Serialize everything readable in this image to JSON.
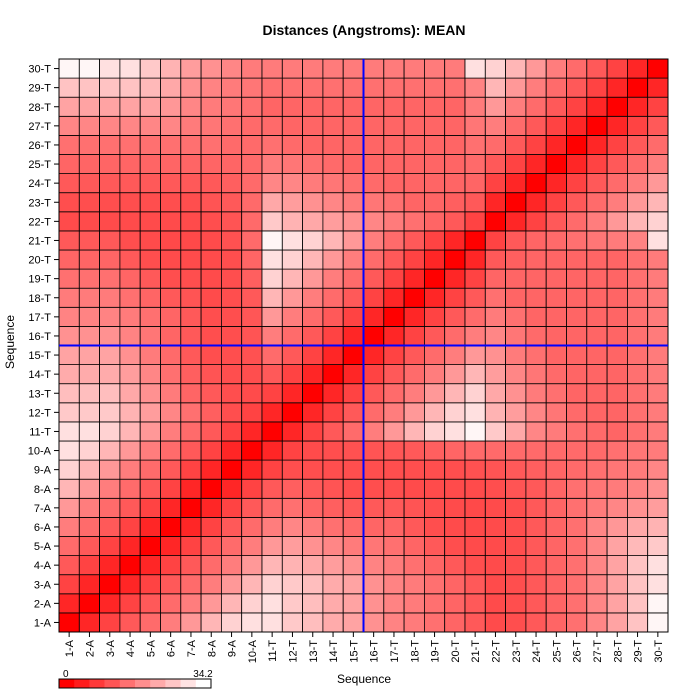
{
  "chart_data": {
    "type": "heatmap",
    "title": "Distances (Angstroms):  MEAN",
    "xlabel": "Sequence",
    "ylabel": "Sequence",
    "x_labels": [
      "1-A",
      "2-A",
      "3-A",
      "4-A",
      "5-A",
      "6-A",
      "7-A",
      "8-A",
      "9-A",
      "10-A",
      "11-T",
      "12-T",
      "13-T",
      "14-T",
      "15-T",
      "16-T",
      "17-T",
      "18-T",
      "19-T",
      "20-T",
      "21-T",
      "22-T",
      "23-T",
      "24-T",
      "25-T",
      "26-T",
      "27-T",
      "28-T",
      "29-T",
      "30-T"
    ],
    "y_labels": [
      "1-A",
      "2-A",
      "3-A",
      "4-A",
      "5-A",
      "6-A",
      "7-A",
      "8-A",
      "9-A",
      "10-A",
      "11-T",
      "12-T",
      "13-T",
      "14-T",
      "15-T",
      "16-T",
      "17-T",
      "18-T",
      "19-T",
      "20-T",
      "21-T",
      "22-T",
      "23-T",
      "24-T",
      "25-T",
      "26-T",
      "27-T",
      "28-T",
      "29-T",
      "30-T"
    ],
    "matrix": [
      [
        0.0,
        5.1,
        9.0,
        12.0,
        14.4,
        16.7,
        20.4,
        24.4,
        28.2,
        30.0,
        30.0,
        27.0,
        25.5,
        22.9,
        21.8,
        19.4,
        17.6,
        16.5,
        15.0,
        13.5,
        12.0,
        10.1,
        10.5,
        12.0,
        13.5,
        15.0,
        18.0,
        21.8,
        26.2,
        33.0
      ],
      [
        5.1,
        0.0,
        5.1,
        9.0,
        12.0,
        14.4,
        16.7,
        20.4,
        24.4,
        28.2,
        30.0,
        27.0,
        25.5,
        22.9,
        21.8,
        19.4,
        17.6,
        16.5,
        15.0,
        13.5,
        12.0,
        10.1,
        10.5,
        12.0,
        13.5,
        15.0,
        18.0,
        21.8,
        26.2,
        33.0
      ],
      [
        9.0,
        5.1,
        0.0,
        5.1,
        9.0,
        12.0,
        14.4,
        16.7,
        20.4,
        24.4,
        28.2,
        27.0,
        25.5,
        22.9,
        21.8,
        19.4,
        17.6,
        16.5,
        15.0,
        13.5,
        12.0,
        10.1,
        10.5,
        12.0,
        13.5,
        15.0,
        18.0,
        21.8,
        26.2,
        30.0
      ],
      [
        12.0,
        9.0,
        5.1,
        0.0,
        5.1,
        9.0,
        12.0,
        14.4,
        16.7,
        20.4,
        24.4,
        24.0,
        22.5,
        21.0,
        19.5,
        17.6,
        16.5,
        15.0,
        13.5,
        12.0,
        10.5,
        10.1,
        10.5,
        12.0,
        13.5,
        15.0,
        18.0,
        21.8,
        26.2,
        30.0
      ],
      [
        14.4,
        12.0,
        9.0,
        5.1,
        0.0,
        5.1,
        9.0,
        12.0,
        14.4,
        16.7,
        20.4,
        21.0,
        19.5,
        18.0,
        16.5,
        15.8,
        15.0,
        13.5,
        12.0,
        10.5,
        10.1,
        10.1,
        10.5,
        12.0,
        13.5,
        15.0,
        18.0,
        21.8,
        24.8,
        27.0
      ],
      [
        16.7,
        14.4,
        12.0,
        9.0,
        5.1,
        0.0,
        5.1,
        9.0,
        12.0,
        14.4,
        16.7,
        18.0,
        16.5,
        15.0,
        14.2,
        13.5,
        13.5,
        12.0,
        10.5,
        10.1,
        9.8,
        10.1,
        10.5,
        12.0,
        13.5,
        15.0,
        18.0,
        20.2,
        22.5,
        24.0
      ],
      [
        20.4,
        16.7,
        14.4,
        12.0,
        9.0,
        5.1,
        0.0,
        5.1,
        9.0,
        12.0,
        14.4,
        15.0,
        13.5,
        12.8,
        12.0,
        12.0,
        12.0,
        11.2,
        10.5,
        10.1,
        9.8,
        10.1,
        10.5,
        12.0,
        13.5,
        15.0,
        16.5,
        18.0,
        19.5,
        21.0
      ],
      [
        24.4,
        20.4,
        16.7,
        14.4,
        12.0,
        9.0,
        5.1,
        0.0,
        5.1,
        9.0,
        12.0,
        12.8,
        12.0,
        11.2,
        10.5,
        10.5,
        10.5,
        10.1,
        10.1,
        10.1,
        10.1,
        10.5,
        11.2,
        12.0,
        13.5,
        15.0,
        15.8,
        16.5,
        17.6,
        19.5
      ],
      [
        28.2,
        24.4,
        20.4,
        16.7,
        14.4,
        12.0,
        9.0,
        5.1,
        0.0,
        5.1,
        9.0,
        10.5,
        10.5,
        10.5,
        10.5,
        10.5,
        10.5,
        10.5,
        10.5,
        10.5,
        10.9,
        11.2,
        12.0,
        12.8,
        13.5,
        14.2,
        15.0,
        15.8,
        16.5,
        18.0
      ],
      [
        30.0,
        28.2,
        24.4,
        20.4,
        16.7,
        14.4,
        12.0,
        9.0,
        5.1,
        0.0,
        5.1,
        9.0,
        10.1,
        10.5,
        10.9,
        11.2,
        11.6,
        12.0,
        12.8,
        13.5,
        14.2,
        14.2,
        14.2,
        14.2,
        14.2,
        14.2,
        14.2,
        15.0,
        15.8,
        16.5
      ],
      [
        30.0,
        30.0,
        28.2,
        24.4,
        20.4,
        16.7,
        14.4,
        12.0,
        9.0,
        5.1,
        0.0,
        5.1,
        9.0,
        12.0,
        14.4,
        16.7,
        20.4,
        24.4,
        28.2,
        30.0,
        33.0,
        27.0,
        22.5,
        18.0,
        16.5,
        15.0,
        14.2,
        13.5,
        15.0,
        16.5
      ],
      [
        27.0,
        27.0,
        27.0,
        24.0,
        21.0,
        18.0,
        15.0,
        12.8,
        10.5,
        9.0,
        5.1,
        0.0,
        5.1,
        9.0,
        12.0,
        14.4,
        16.7,
        20.4,
        24.4,
        28.2,
        30.0,
        24.0,
        21.0,
        18.0,
        15.8,
        14.2,
        13.5,
        13.5,
        15.0,
        16.5
      ],
      [
        25.5,
        25.5,
        25.5,
        22.5,
        19.5,
        16.5,
        13.5,
        12.0,
        10.5,
        10.1,
        9.0,
        5.1,
        0.0,
        5.1,
        9.0,
        12.0,
        14.4,
        16.7,
        20.4,
        24.4,
        28.2,
        22.5,
        19.5,
        16.5,
        15.0,
        13.5,
        13.5,
        13.5,
        15.0,
        16.5
      ],
      [
        22.9,
        22.9,
        22.9,
        21.0,
        18.0,
        15.0,
        12.8,
        11.2,
        10.5,
        10.5,
        12.0,
        9.0,
        5.1,
        0.0,
        5.1,
        9.0,
        12.0,
        14.4,
        16.7,
        20.4,
        24.4,
        21.0,
        18.0,
        15.8,
        14.2,
        13.5,
        13.5,
        13.5,
        15.0,
        16.5
      ],
      [
        21.8,
        21.8,
        21.8,
        19.5,
        16.5,
        14.2,
        12.0,
        10.5,
        10.5,
        10.9,
        14.4,
        12.0,
        9.0,
        5.1,
        0.0,
        5.1,
        9.0,
        12.0,
        14.4,
        16.7,
        20.4,
        19.5,
        16.5,
        15.0,
        13.5,
        13.5,
        13.5,
        13.5,
        15.0,
        16.5
      ],
      [
        19.4,
        19.4,
        19.4,
        17.6,
        15.8,
        13.5,
        12.0,
        10.5,
        10.5,
        11.2,
        16.7,
        14.4,
        12.0,
        9.0,
        5.1,
        0.0,
        5.1,
        9.0,
        12.0,
        14.4,
        16.7,
        18.0,
        15.8,
        14.2,
        13.5,
        13.5,
        13.5,
        13.5,
        15.0,
        16.5
      ],
      [
        17.6,
        17.6,
        17.6,
        16.5,
        15.0,
        13.5,
        12.0,
        10.5,
        10.5,
        11.6,
        20.4,
        16.7,
        14.4,
        12.0,
        9.0,
        5.1,
        0.0,
        5.1,
        9.0,
        12.0,
        14.4,
        16.5,
        15.0,
        13.5,
        13.5,
        13.5,
        13.5,
        13.5,
        15.0,
        16.5
      ],
      [
        16.5,
        16.5,
        16.5,
        15.0,
        13.5,
        12.0,
        11.2,
        10.1,
        10.5,
        12.0,
        24.4,
        20.4,
        16.7,
        14.4,
        12.0,
        9.0,
        5.1,
        0.0,
        5.1,
        9.0,
        12.0,
        15.0,
        13.5,
        13.5,
        13.5,
        13.5,
        13.5,
        13.5,
        15.0,
        16.5
      ],
      [
        15.0,
        15.0,
        15.0,
        13.5,
        12.0,
        10.5,
        10.5,
        10.1,
        10.5,
        12.8,
        28.2,
        24.4,
        20.4,
        16.7,
        14.4,
        12.0,
        9.0,
        5.1,
        0.0,
        5.1,
        9.0,
        13.5,
        13.5,
        13.5,
        13.5,
        13.5,
        13.5,
        13.5,
        15.0,
        16.5
      ],
      [
        13.5,
        13.5,
        13.5,
        12.0,
        10.5,
        10.1,
        10.1,
        10.1,
        10.5,
        13.5,
        30.0,
        28.2,
        24.4,
        20.4,
        16.7,
        14.4,
        12.0,
        9.0,
        5.1,
        0.0,
        5.1,
        12.0,
        12.8,
        13.5,
        13.5,
        13.5,
        13.5,
        13.5,
        15.0,
        16.5
      ],
      [
        12.0,
        12.0,
        12.0,
        10.5,
        10.1,
        9.8,
        9.8,
        10.1,
        10.9,
        14.2,
        33.0,
        30.0,
        28.2,
        24.4,
        20.4,
        16.7,
        14.4,
        12.0,
        9.0,
        5.1,
        0.0,
        9.0,
        12.0,
        13.5,
        14.2,
        15.0,
        15.8,
        16.5,
        17.6,
        30.0
      ],
      [
        10.1,
        10.1,
        10.1,
        10.1,
        10.1,
        10.1,
        10.1,
        10.5,
        11.2,
        14.2,
        27.0,
        24.0,
        22.5,
        21.0,
        19.5,
        18.0,
        16.5,
        15.0,
        13.5,
        12.0,
        9.0,
        0.0,
        5.1,
        9.0,
        12.0,
        14.4,
        16.7,
        20.4,
        24.4,
        28.2
      ],
      [
        10.5,
        10.5,
        10.5,
        10.5,
        10.5,
        10.5,
        10.5,
        11.2,
        12.0,
        14.2,
        22.5,
        21.0,
        19.5,
        18.0,
        16.5,
        15.8,
        15.0,
        13.5,
        13.5,
        12.8,
        12.0,
        5.1,
        0.0,
        5.1,
        9.0,
        12.0,
        14.4,
        16.7,
        20.4,
        24.4
      ],
      [
        12.0,
        12.0,
        12.0,
        12.0,
        12.0,
        12.0,
        12.0,
        12.0,
        12.8,
        14.2,
        18.0,
        18.0,
        16.5,
        15.8,
        15.0,
        14.2,
        13.5,
        13.5,
        13.5,
        13.5,
        13.5,
        9.0,
        5.1,
        0.0,
        5.1,
        9.0,
        12.0,
        14.4,
        16.7,
        20.4
      ],
      [
        13.5,
        13.5,
        13.5,
        13.5,
        13.5,
        13.5,
        13.5,
        13.5,
        13.5,
        14.2,
        16.5,
        15.8,
        15.0,
        14.2,
        13.5,
        13.5,
        13.5,
        13.5,
        13.5,
        13.5,
        14.2,
        12.0,
        9.0,
        5.1,
        0.0,
        5.1,
        9.0,
        12.0,
        14.4,
        16.7
      ],
      [
        15.0,
        15.0,
        15.0,
        15.0,
        15.0,
        15.0,
        15.0,
        15.0,
        14.2,
        14.2,
        15.0,
        14.2,
        13.5,
        13.5,
        13.5,
        13.5,
        13.5,
        13.5,
        13.5,
        13.5,
        15.0,
        14.4,
        12.0,
        9.0,
        5.1,
        0.0,
        5.1,
        9.0,
        12.0,
        14.4
      ],
      [
        18.0,
        18.0,
        18.0,
        18.0,
        18.0,
        18.0,
        16.5,
        15.8,
        15.0,
        14.2,
        14.2,
        13.5,
        13.5,
        13.5,
        13.5,
        13.5,
        13.5,
        13.5,
        13.5,
        13.5,
        15.8,
        16.7,
        14.4,
        12.0,
        9.0,
        5.1,
        0.0,
        5.1,
        9.0,
        12.0
      ],
      [
        21.8,
        21.8,
        21.8,
        21.8,
        21.8,
        20.2,
        18.0,
        16.5,
        15.8,
        15.0,
        13.5,
        13.5,
        13.5,
        13.5,
        13.5,
        13.5,
        13.5,
        13.5,
        13.5,
        13.5,
        16.5,
        20.4,
        16.7,
        14.4,
        12.0,
        9.0,
        5.1,
        0.0,
        5.1,
        9.0
      ],
      [
        26.2,
        26.2,
        26.2,
        26.2,
        24.8,
        22.5,
        19.5,
        17.6,
        16.5,
        15.8,
        15.0,
        15.0,
        15.0,
        15.0,
        15.0,
        15.0,
        15.0,
        15.0,
        15.0,
        15.0,
        17.6,
        24.4,
        20.4,
        16.7,
        14.4,
        12.0,
        9.0,
        5.1,
        0.0,
        5.1
      ],
      [
        33.0,
        33.0,
        30.0,
        30.0,
        27.0,
        24.0,
        21.0,
        19.5,
        18.0,
        16.5,
        16.5,
        16.5,
        16.5,
        16.5,
        16.5,
        16.5,
        16.5,
        16.5,
        16.5,
        16.5,
        30.0,
        28.2,
        24.4,
        20.4,
        16.7,
        14.4,
        12.0,
        9.0,
        5.1,
        0.0
      ]
    ],
    "value_range": [
      0,
      34.2
    ],
    "colorscale": {
      "low": "#ff0000",
      "high": "#ffffff"
    },
    "legend": {
      "min_label": "0",
      "max_label": "34.2",
      "placement": "bottom-left"
    },
    "crosshair": {
      "x_label": "15-T",
      "y_label": "15-T",
      "color": "#0000ff"
    },
    "grid": true
  }
}
